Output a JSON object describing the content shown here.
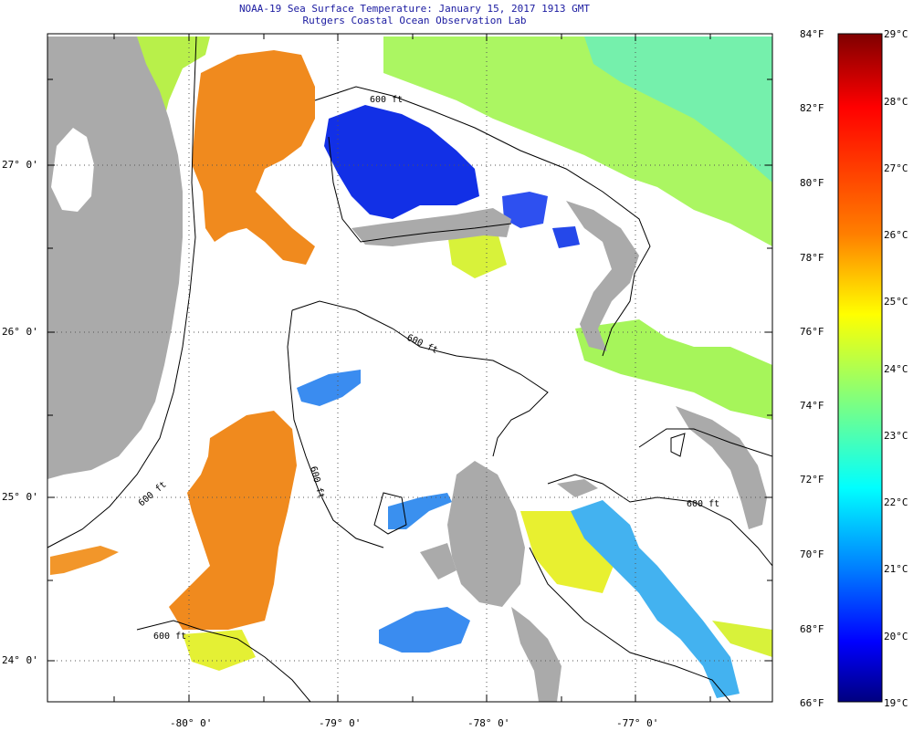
{
  "title": {
    "line1": "NOAA-19 Sea Surface Temperature:  January 15, 2017 1913 GMT",
    "line2": "Rutgers Coastal Ocean Observation Lab"
  },
  "map": {
    "lat_labels": [
      "27° 0'",
      "26° 0'",
      "25° 0'",
      "24° 0'"
    ],
    "lon_labels": [
      "-80° 0'",
      "-79° 0'",
      "-78° 0'",
      "-77° 0'"
    ],
    "contour_labels": [
      "600 ft",
      "600 ft",
      "600 ft",
      "600 ft",
      "600 ft",
      "600 ft"
    ],
    "colors": {
      "land": "#aaaaaa",
      "ocean_cloud": "#ffffff",
      "grid": "#444444"
    }
  },
  "colorbar": {
    "fahrenheit": [
      "84°F",
      "82°F",
      "80°F",
      "78°F",
      "76°F",
      "74°F",
      "72°F",
      "70°F",
      "68°F",
      "66°F"
    ],
    "celsius": [
      "29°C",
      "28°C",
      "27°C",
      "26°C",
      "25°C",
      "24°C",
      "23°C",
      "22°C",
      "21°C",
      "20°C",
      "19°C"
    ],
    "stops": [
      "#7f0000",
      "#ff0000",
      "#ff7f00",
      "#ffff00",
      "#7fff7f",
      "#00ffff",
      "#007fff",
      "#0000ff",
      "#00007f"
    ]
  }
}
